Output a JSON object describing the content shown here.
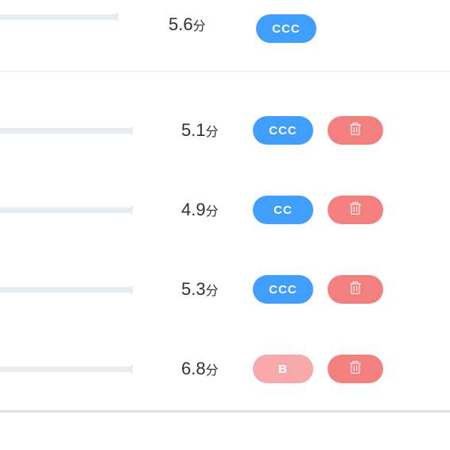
{
  "colors": {
    "track": "#e9ecef",
    "badge_blue": "#409eff",
    "badge_pink": "#f7a8a8",
    "delete_btn": "#f37f7f",
    "text": "#303133",
    "divider": "#e5e7eb",
    "bottom_line": "#dedfe0",
    "handle": "#000000"
  },
  "header_row": {
    "score_value": "5.6",
    "score_unit": "分",
    "badge_text": "CCC",
    "badge_style": "blue",
    "show_handle": false,
    "show_delete": false
  },
  "rows": [
    {
      "score_value": "5.1",
      "score_unit": "分",
      "badge_text": "CCC",
      "badge_style": "blue",
      "show_handle": false,
      "show_delete": true
    },
    {
      "score_value": "4.9",
      "score_unit": "分",
      "badge_text": "CC",
      "badge_style": "blue",
      "show_handle": false,
      "show_delete": true
    },
    {
      "score_value": "5.3",
      "score_unit": "分",
      "badge_text": "CCC",
      "badge_style": "blue",
      "show_handle": false,
      "show_delete": true
    },
    {
      "score_value": "6.8",
      "score_unit": "分",
      "badge_text": "B",
      "badge_style": "pink",
      "show_handle": true,
      "handle_position": 0,
      "show_delete": true
    }
  ]
}
